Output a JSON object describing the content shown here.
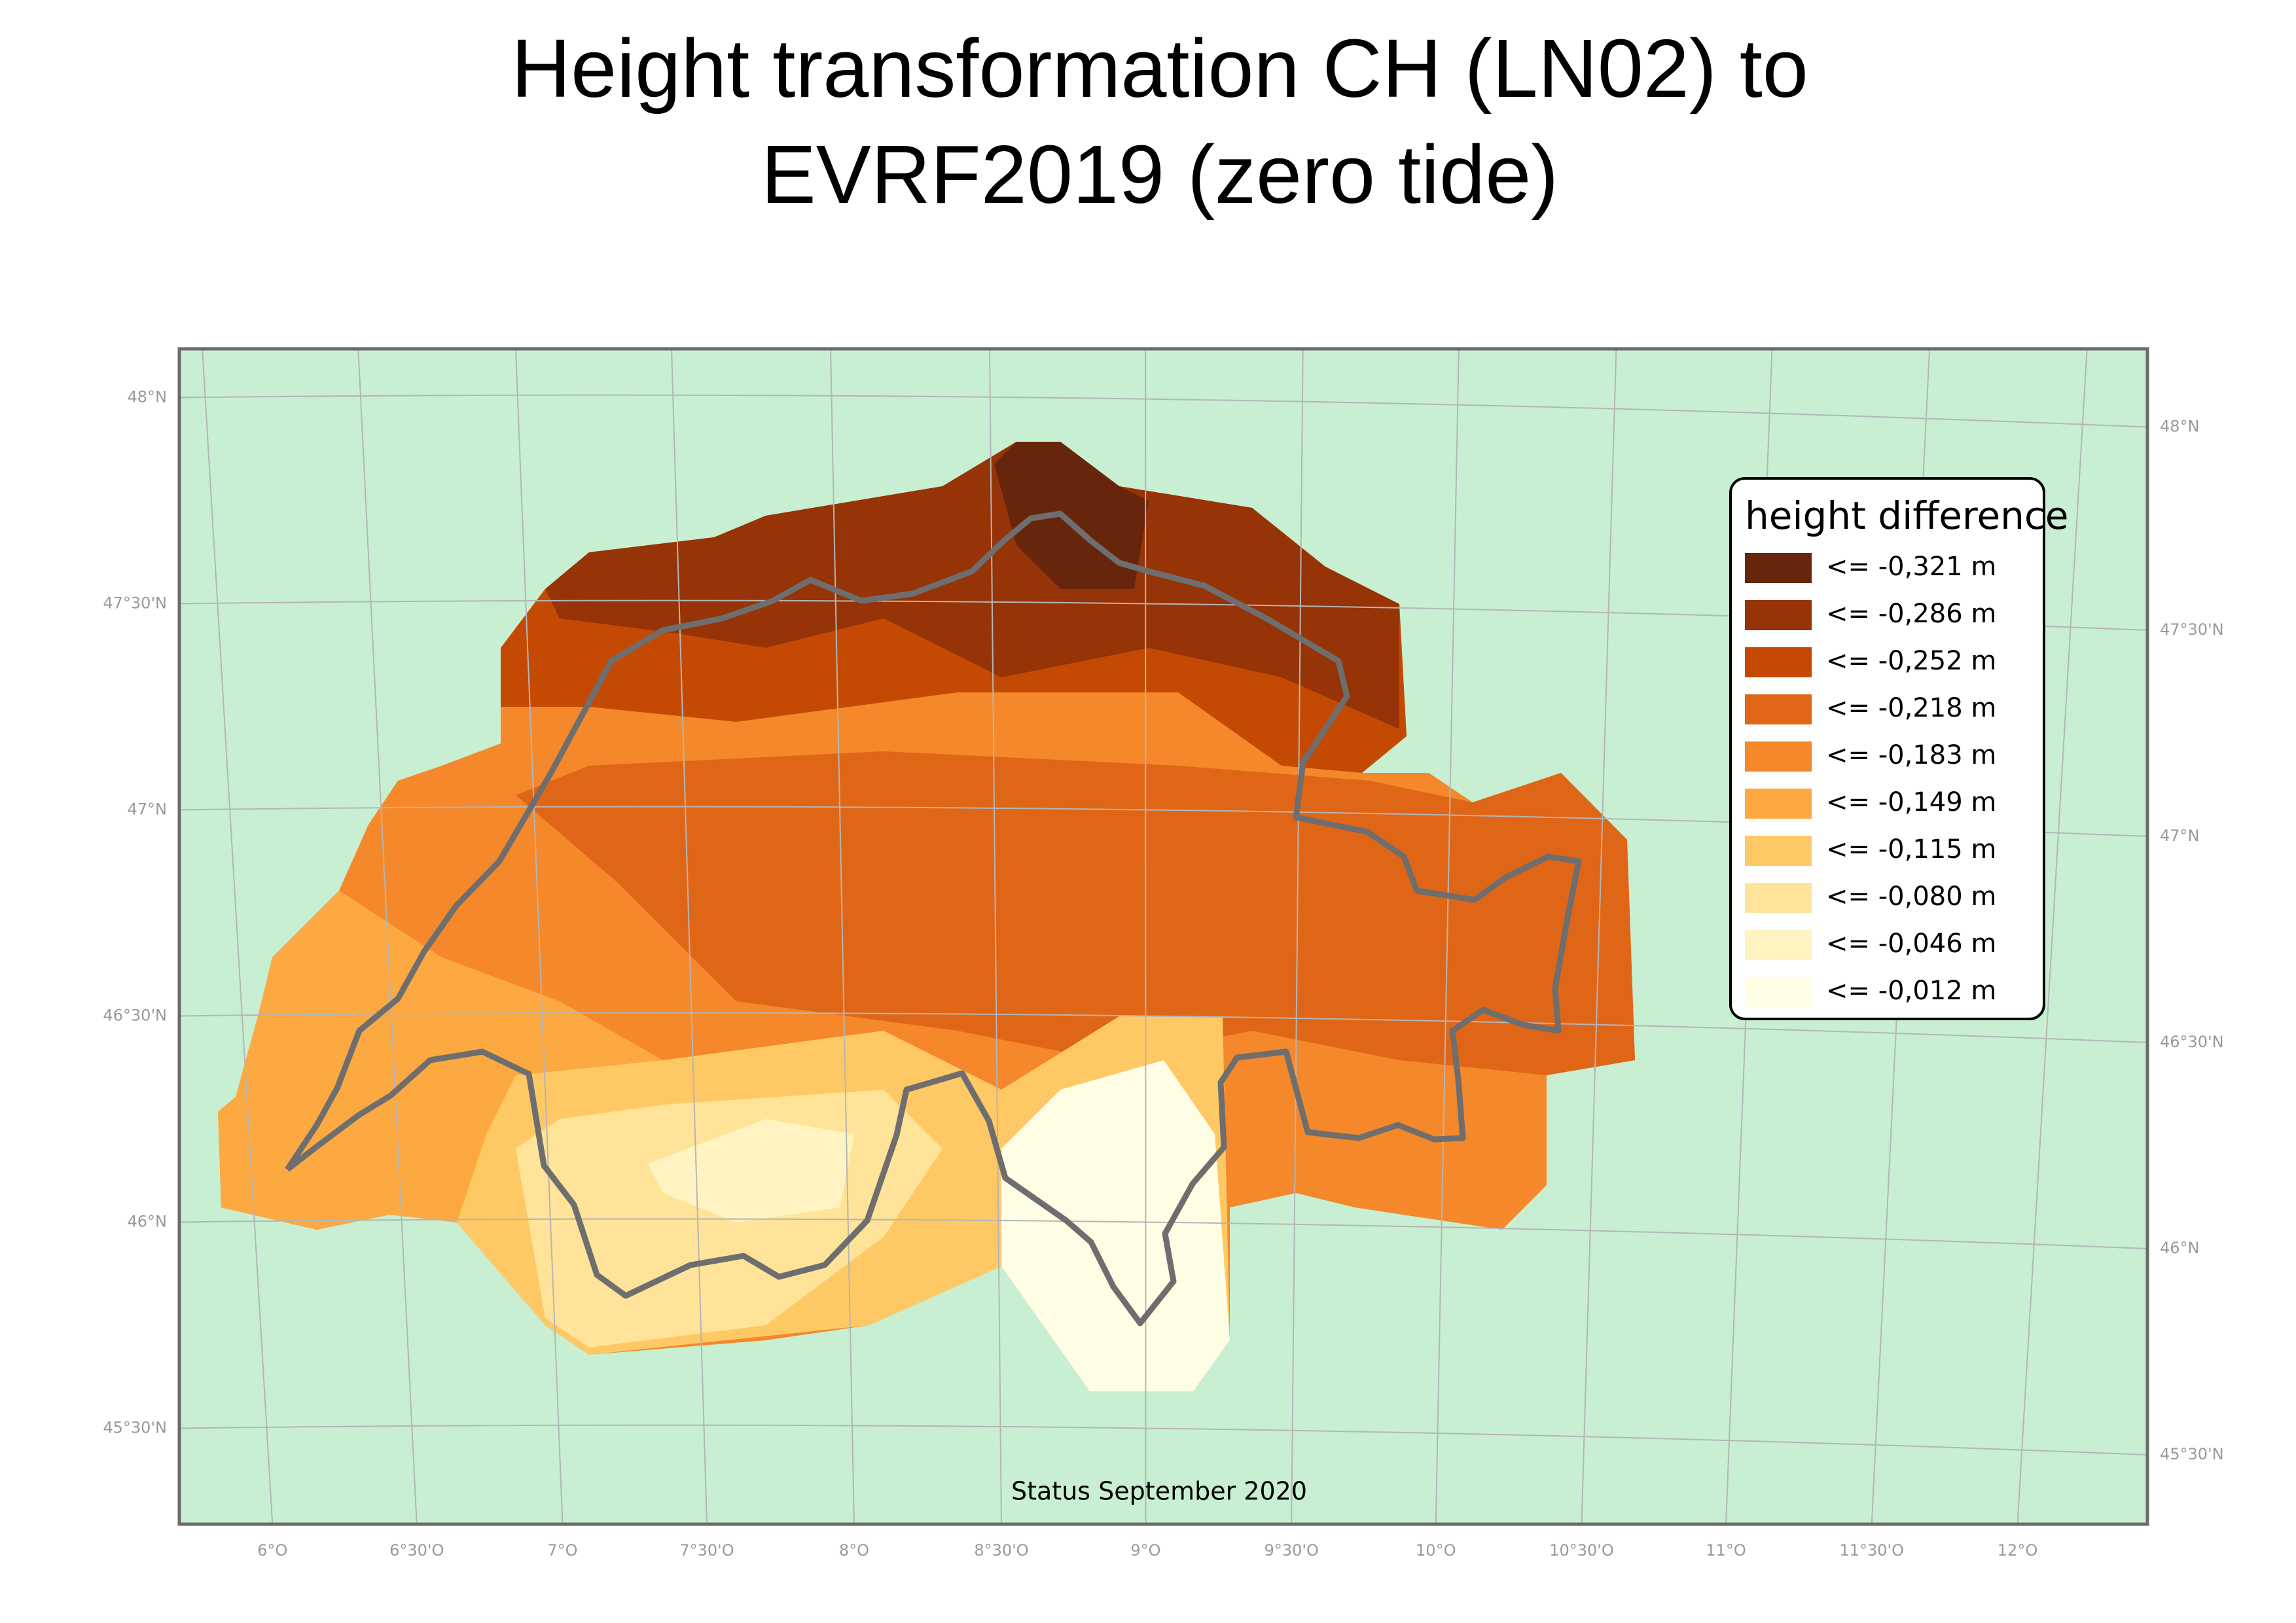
{
  "title": [
    "Height transformation CH (LN02) to",
    "EVRF2019 (zero tide)"
  ],
  "legend": {
    "title": "height difference",
    "items": [
      {
        "label": "<= -0,321 m",
        "color": "#67260c"
      },
      {
        "label": "<= -0,286 m",
        "color": "#963307"
      },
      {
        "label": "<= -0,252 m",
        "color": "#c44a03"
      },
      {
        "label": "<= -0,218 m",
        "color": "#e06617"
      },
      {
        "label": "<= -0,183 m",
        "color": "#f4882a"
      },
      {
        "label": "<= -0,149 m",
        "color": "#fca942"
      },
      {
        "label": "<= -0,115 m",
        "color": "#fec965"
      },
      {
        "label": "<= -0,080 m",
        "color": "#fee398"
      },
      {
        "label": "<= -0,046 m",
        "color": "#fff4c1"
      },
      {
        "label": "<= -0,012 m",
        "color": "#fffee5"
      }
    ]
  },
  "graticule": {
    "left": [
      "48°N",
      "47°30'N",
      "47°N",
      "46°30'N",
      "46°N",
      "45°30'N"
    ],
    "right": [
      "48°N",
      "47°30'N",
      "47°N",
      "46°30'N",
      "46°N",
      "45°30'N"
    ],
    "bottom": [
      "6°O",
      "6°30'O",
      "7°O",
      "7°30'O",
      "8°O",
      "8°30'O",
      "9°O",
      "9°30'O",
      "10°O",
      "10°30'O",
      "11°O",
      "11°30'O",
      "12°O"
    ]
  },
  "status": "Status September 2020"
}
